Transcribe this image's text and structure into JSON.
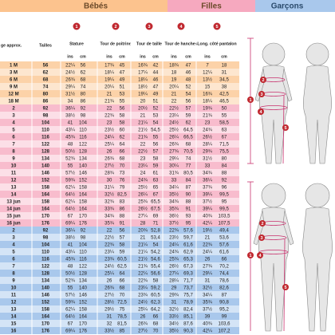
{
  "header": {
    "babies": "Bébés",
    "girls": "Filles",
    "boys": "Garçons"
  },
  "columns": {
    "age": "ge approx.",
    "size": "Tailles",
    "measures": [
      {
        "number": "1",
        "label": "Stature"
      },
      {
        "number": "2",
        "label": "Tour de poitrine"
      },
      {
        "number": "3",
        "label": "Tour de taille"
      },
      {
        "number": "4",
        "label": "Tour de hanches"
      },
      {
        "number": "5",
        "label": "Long. côté pantalon"
      }
    ]
  },
  "units": {
    "ins": "ins",
    "cm": "cm"
  },
  "sections": [
    {
      "name": "babies",
      "rows": [
        [
          "1 M",
          "56",
          "22¼",
          "56",
          "17¾",
          "45",
          "16¾",
          "42",
          "18¾",
          "47",
          "7",
          "18"
        ],
        [
          "3 M",
          "62",
          "24½",
          "62",
          "18¼",
          "47",
          "17¼",
          "44",
          "18",
          "46",
          "12¼",
          "31"
        ],
        [
          "6 M",
          "68",
          "26¾",
          "68",
          "19¼",
          "49",
          "18¼",
          "46",
          "19",
          "48",
          "13½",
          "34,5"
        ],
        [
          "9 M",
          "74",
          "29¼",
          "74",
          "20¼",
          "51",
          "18½",
          "47",
          "20¼",
          "52",
          "15",
          "38"
        ],
        [
          "12 M",
          "80",
          "31½",
          "80",
          "21",
          "53",
          "19¼",
          "49",
          "21",
          "54",
          "16¾",
          "42,5"
        ],
        [
          "18 M",
          "86",
          "34",
          "86",
          "21¾",
          "55",
          "20",
          "51",
          "22",
          "56",
          "18¼",
          "46,5"
        ]
      ]
    },
    {
      "name": "girls",
      "rows": [
        [
          "2",
          "92",
          "36¼",
          "92",
          "22",
          "56",
          "20½",
          "52",
          "22½",
          "57",
          "19¾",
          "50"
        ],
        [
          "3",
          "98",
          "38½",
          "98",
          "22¾",
          "58",
          "21",
          "53",
          "23¼",
          "59",
          "21¾",
          "55"
        ],
        [
          "4",
          "104",
          "41",
          "104",
          "23",
          "58",
          "21¼",
          "54",
          "24½",
          "62",
          "23",
          "58,5"
        ],
        [
          "5",
          "110",
          "43¼",
          "110",
          "23½",
          "60",
          "21½",
          "54,5",
          "25½",
          "64,5",
          "24¾",
          "63"
        ],
        [
          "6",
          "116",
          "45¾",
          "116",
          "24¼",
          "62",
          "21¾",
          "55",
          "26¼",
          "66,5",
          "26½",
          "67"
        ],
        [
          "7",
          "122",
          "48",
          "122",
          "25¼",
          "64",
          "22",
          "56",
          "26¾",
          "68",
          "28¼",
          "71,5"
        ],
        [
          "8",
          "128",
          "50½",
          "128",
          "26",
          "66",
          "22½",
          "57",
          "27¾",
          "70,5",
          "29¾",
          "75,5"
        ],
        [
          "9",
          "134",
          "52¾",
          "134",
          "26¾",
          "68",
          "23",
          "58",
          "29¼",
          "74",
          "31½",
          "80"
        ],
        [
          "10",
          "140",
          "55",
          "140",
          "27½",
          "70",
          "23¼",
          "59",
          "30¼",
          "77",
          "33",
          "84"
        ],
        [
          "11",
          "146",
          "57½",
          "146",
          "28¾",
          "73",
          "24",
          "61",
          "31¾",
          "80,5",
          "34¾",
          "88"
        ],
        [
          "12",
          "152",
          "59¾",
          "152",
          "30",
          "76",
          "24¾",
          "63",
          "33",
          "84",
          "36¼",
          "92"
        ],
        [
          "13",
          "158",
          "62¼",
          "158",
          "31¼",
          "79",
          "25½",
          "65",
          "34¼",
          "87",
          "37¾",
          "96"
        ],
        [
          "14",
          "164",
          "64½",
          "164",
          "32½",
          "82,5",
          "26¼",
          "67",
          "35½",
          "90",
          "39¼",
          "99,5"
        ],
        [
          "13 jun",
          "158",
          "62¼",
          "158",
          "32¾",
          "83",
          "25¾",
          "65,5",
          "34¾",
          "88",
          "37½",
          "95"
        ],
        [
          "14 jun",
          "164",
          "64½",
          "164",
          "33¾",
          "86",
          "26½",
          "67,5",
          "35¾",
          "91",
          "39¼",
          "99,5"
        ],
        [
          "15 jun",
          "170",
          "67",
          "170",
          "34¾",
          "88",
          "27¼",
          "69",
          "36½",
          "93",
          "40¾",
          "103,5"
        ],
        [
          "16 jun",
          "176",
          "69¼",
          "176",
          "35¾",
          "91",
          "28",
          "71",
          "37½",
          "95",
          "42¼",
          "107,5"
        ]
      ]
    },
    {
      "name": "boys",
      "rows": [
        [
          "2",
          "92",
          "36¼",
          "92",
          "22",
          "56",
          "20¾",
          "52,8",
          "22¾",
          "57,6",
          "19½",
          "49,4"
        ],
        [
          "3",
          "98",
          "38½",
          "98",
          "22½",
          "57",
          "21",
          "53,4",
          "23½",
          "59,7",
          "21",
          "53,6"
        ],
        [
          "4",
          "104",
          "41",
          "104",
          "22¾",
          "58",
          "21¼",
          "54",
          "24¼",
          "61,6",
          "22¾",
          "57,6"
        ],
        [
          "5",
          "110",
          "43¼",
          "110",
          "23¼",
          "59",
          "21¼",
          "54,2",
          "24¾",
          "62,9",
          "24¼",
          "61,6"
        ],
        [
          "6",
          "116",
          "45¾",
          "116",
          "23¾",
          "60,5",
          "21½",
          "54,6",
          "25¾",
          "65,3",
          "26",
          "66"
        ],
        [
          "7",
          "122",
          "48",
          "122",
          "24½",
          "62,5",
          "21¾",
          "55,4",
          "26½",
          "67,3",
          "27¾",
          "70,2"
        ],
        [
          "8",
          "128",
          "50½",
          "128",
          "25¼",
          "64",
          "22¼",
          "56,6",
          "27¼",
          "69,3",
          "29¼",
          "74,4"
        ],
        [
          "9",
          "134",
          "52¾",
          "134",
          "26",
          "66",
          "22¾",
          "58",
          "28¼",
          "71,7",
          "31",
          "78,6"
        ],
        [
          "10",
          "140",
          "55",
          "140",
          "26¾",
          "68",
          "23¼",
          "59,2",
          "29",
          "73,7",
          "32½",
          "82,6"
        ],
        [
          "11",
          "146",
          "57½",
          "146",
          "27½",
          "70",
          "23¾",
          "60,5",
          "29¾",
          "75,7",
          "34¼",
          "87"
        ],
        [
          "12",
          "152",
          "59¾",
          "152",
          "28½",
          "72,5",
          "24½",
          "62,3",
          "31",
          "78,9",
          "35¾",
          "90,8"
        ],
        [
          "13",
          "158",
          "62¼",
          "158",
          "29½",
          "75",
          "25¼",
          "64,2",
          "32½",
          "82,4",
          "37½",
          "95,2"
        ],
        [
          "14",
          "164",
          "64½",
          "164",
          "31",
          "78,5",
          "26",
          "66",
          "33½",
          "85,1",
          "39",
          "99"
        ],
        [
          "15",
          "170",
          "67",
          "170",
          "32",
          "81,5",
          "26¾",
          "68",
          "34½",
          "87,6",
          "40¾",
          "103,6"
        ],
        [
          "16",
          "176",
          "69¼",
          "176",
          "33½",
          "85",
          "27½",
          "70",
          "35½",
          "90,3",
          "42¼",
          "107,2"
        ]
      ]
    }
  ]
}
